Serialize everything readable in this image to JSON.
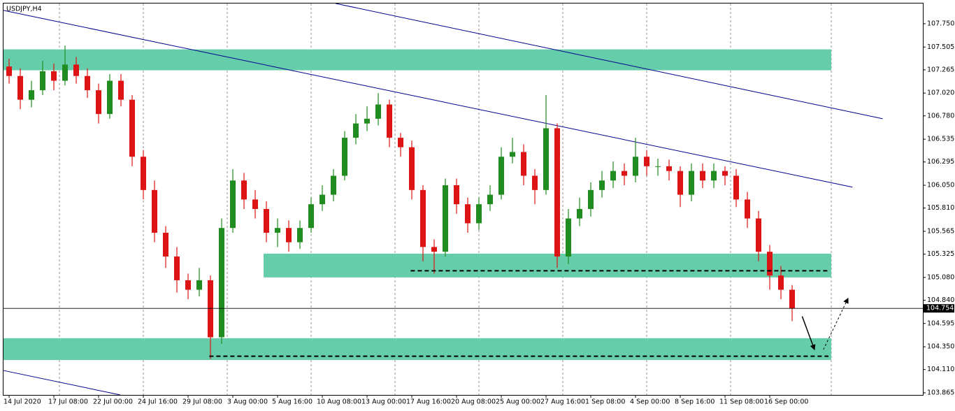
{
  "chart_data": {
    "type": "candlestick",
    "title": "USDJPY,H4",
    "up_color": "#1e8c1e",
    "down_color": "#dc1414",
    "x": [
      0,
      1,
      2,
      3,
      4,
      5,
      6,
      7,
      8,
      9,
      10,
      11,
      12,
      13,
      14,
      15,
      16,
      17,
      18,
      19,
      20,
      21,
      22,
      23,
      24,
      25,
      26,
      27,
      28,
      29,
      30,
      31,
      32,
      33,
      34,
      35,
      36,
      37,
      38,
      39,
      40,
      41,
      42,
      43,
      44,
      45,
      46,
      47,
      48,
      49,
      50,
      51,
      52,
      53,
      54,
      55,
      56,
      57,
      58,
      59,
      60,
      61,
      62,
      63,
      64,
      65,
      66,
      67,
      68,
      69,
      70
    ],
    "open": [
      107.3,
      107.2,
      106.95,
      107.05,
      107.25,
      107.15,
      107.32,
      107.2,
      107.05,
      106.8,
      107.15,
      106.95,
      106.35,
      106.0,
      105.55,
      105.3,
      105.05,
      104.95,
      105.05,
      104.45,
      105.6,
      106.1,
      105.9,
      105.8,
      105.55,
      105.6,
      105.45,
      105.6,
      105.85,
      105.95,
      106.15,
      106.55,
      106.7,
      106.75,
      106.9,
      106.55,
      106.45,
      106.0,
      105.4,
      105.35,
      106.05,
      105.85,
      105.65,
      105.85,
      105.95,
      106.35,
      106.4,
      106.15,
      106.0,
      106.65,
      105.3,
      105.7,
      105.8,
      106.0,
      106.1,
      106.2,
      106.15,
      106.35,
      106.25,
      106.25,
      106.2,
      105.95,
      106.2,
      106.1,
      106.2,
      106.15,
      105.9,
      105.7,
      105.35,
      105.1,
      104.95
    ],
    "high": [
      107.38,
      107.28,
      107.15,
      107.36,
      107.33,
      107.52,
      107.4,
      107.28,
      107.12,
      107.22,
      107.22,
      107.0,
      106.42,
      106.1,
      105.62,
      105.4,
      105.12,
      105.18,
      105.1,
      105.7,
      106.22,
      106.18,
      106.0,
      105.88,
      105.7,
      105.68,
      105.68,
      105.92,
      106.05,
      106.22,
      106.62,
      106.8,
      106.88,
      107.02,
      106.95,
      106.6,
      106.52,
      106.05,
      105.48,
      106.12,
      106.12,
      105.92,
      105.92,
      106.05,
      106.45,
      106.55,
      106.48,
      106.22,
      107.0,
      106.7,
      105.8,
      105.92,
      106.08,
      106.2,
      106.3,
      106.28,
      106.55,
      106.42,
      106.33,
      106.32,
      106.25,
      106.28,
      106.28,
      106.28,
      106.25,
      106.22,
      105.98,
      105.78,
      105.42,
      105.2,
      105.0
    ],
    "low": [
      107.12,
      106.85,
      106.87,
      107.0,
      107.05,
      107.1,
      107.12,
      106.97,
      106.7,
      106.75,
      106.88,
      106.25,
      105.9,
      105.45,
      105.18,
      104.92,
      104.85,
      104.88,
      104.22,
      104.38,
      105.55,
      105.8,
      105.7,
      105.45,
      105.4,
      105.35,
      105.38,
      105.55,
      105.78,
      105.88,
      106.1,
      106.48,
      106.62,
      106.68,
      106.45,
      106.35,
      105.9,
      105.25,
      105.12,
      105.3,
      105.75,
      105.55,
      105.58,
      105.78,
      105.9,
      106.28,
      106.05,
      105.85,
      105.95,
      105.18,
      105.22,
      105.62,
      105.72,
      105.92,
      106.02,
      106.05,
      106.08,
      106.15,
      106.15,
      106.1,
      105.82,
      105.88,
      106.02,
      106.02,
      106.05,
      105.82,
      105.6,
      105.25,
      104.95,
      104.85,
      104.62
    ],
    "close": [
      107.2,
      106.95,
      107.05,
      107.25,
      107.15,
      107.32,
      107.2,
      107.05,
      106.8,
      107.15,
      106.95,
      106.35,
      106.0,
      105.55,
      105.3,
      105.05,
      104.95,
      105.05,
      104.45,
      105.6,
      106.1,
      105.9,
      105.8,
      105.55,
      105.6,
      105.45,
      105.6,
      105.85,
      105.95,
      106.15,
      106.55,
      106.7,
      106.75,
      106.9,
      106.55,
      106.45,
      106.0,
      105.4,
      105.35,
      106.05,
      105.85,
      105.65,
      105.85,
      105.95,
      106.35,
      106.4,
      106.15,
      106.0,
      106.65,
      105.3,
      105.7,
      105.8,
      106.0,
      106.1,
      106.2,
      106.15,
      106.35,
      106.25,
      106.25,
      106.2,
      105.95,
      106.2,
      106.1,
      106.2,
      106.15,
      105.9,
      105.7,
      105.35,
      105.1,
      104.95,
      104.754
    ],
    "xlim": [
      -0.5,
      81.6875
    ],
    "xticks": [
      {
        "value": 0,
        "label": "14 Jul 2020"
      },
      {
        "value": 4,
        "label": "17 Jul 08:00"
      },
      {
        "value": 8,
        "label": "22 Jul 00:00"
      },
      {
        "value": 12,
        "label": "24 Jul 16:00"
      },
      {
        "value": 16,
        "label": "29 Jul 08:00"
      },
      {
        "value": 20,
        "label": "3 Aug 00:00"
      },
      {
        "value": 24,
        "label": "5 Aug 16:00"
      },
      {
        "value": 28,
        "label": "10 Aug 08:00"
      },
      {
        "value": 32,
        "label": "13 Aug 00:00"
      },
      {
        "value": 36,
        "label": "17 Aug 16:00"
      },
      {
        "value": 40,
        "label": "20 Aug 08:00"
      },
      {
        "value": 44,
        "label": "25 Aug 00:00"
      },
      {
        "value": 48,
        "label": "27 Aug 16:00"
      },
      {
        "value": 52,
        "label": "1 Sep 08:00"
      },
      {
        "value": 56,
        "label": "4 Sep 00:00"
      },
      {
        "value": 60,
        "label": "8 Sep 16:00"
      },
      {
        "value": 64,
        "label": "11 Sep 08:00"
      },
      {
        "value": 68,
        "label": "16 Sep 00:00"
      }
    ],
    "ylim": [
      103.843,
      107.963
    ],
    "yticks": [
      {
        "value": 107.75,
        "label": "107.750"
      },
      {
        "value": 107.505,
        "label": "107.505"
      },
      {
        "value": 107.265,
        "label": "107.265"
      },
      {
        "value": 107.02,
        "label": "107.020"
      },
      {
        "value": 106.78,
        "label": "106.780"
      },
      {
        "value": 106.535,
        "label": "106.535"
      },
      {
        "value": 106.295,
        "label": "106.295"
      },
      {
        "value": 106.05,
        "label": "106.050"
      },
      {
        "value": 105.81,
        "label": "105.810"
      },
      {
        "value": 105.565,
        "label": "105.565"
      },
      {
        "value": 105.325,
        "label": "105.325"
      },
      {
        "value": 105.08,
        "label": "105.080"
      },
      {
        "value": 104.84,
        "label": "104.840"
      },
      {
        "value": 104.595,
        "label": "104.595"
      },
      {
        "value": 104.35,
        "label": "104.350"
      },
      {
        "value": 104.11,
        "label": "104.110"
      },
      {
        "value": 103.865,
        "label": "103.865"
      }
    ],
    "current_price": {
      "value": 104.754,
      "label": "104.754"
    },
    "zone_color": "#66cdaa",
    "zones": [
      {
        "xlim": [
          -0.5,
          73.5
        ],
        "ylim": [
          107.26,
          107.48
        ]
      },
      {
        "xlim": [
          22.75,
          73.5
        ],
        "ylim": [
          105.08,
          105.33
        ]
      },
      {
        "xlim": [
          -0.5,
          73.5
        ],
        "ylim": [
          104.21,
          104.44
        ]
      }
    ],
    "trendline_color": "#00008b",
    "trendlines": [
      {
        "x": [
          -0.5,
          75.4
        ],
        "y": [
          107.89,
          106.03
        ]
      },
      {
        "x": [
          29.2,
          78.1
        ],
        "y": [
          107.963,
          106.75
        ]
      },
      {
        "x": [
          -0.5,
          9.94
        ],
        "y": [
          104.1,
          103.843
        ]
      }
    ],
    "levels": [
      {
        "xlim": [
          35.9,
          73.25
        ],
        "y": 105.15
      },
      {
        "xlim": [
          17.9,
          73.25
        ],
        "y": 104.25
      }
    ],
    "arrows": [
      {
        "x": [
          70.9,
          72.0
        ],
        "y": [
          104.67,
          104.32
        ],
        "dashed": false
      },
      {
        "x": [
          72.8,
          75.0
        ],
        "y": [
          104.32,
          104.86
        ],
        "dashed": true
      }
    ]
  }
}
